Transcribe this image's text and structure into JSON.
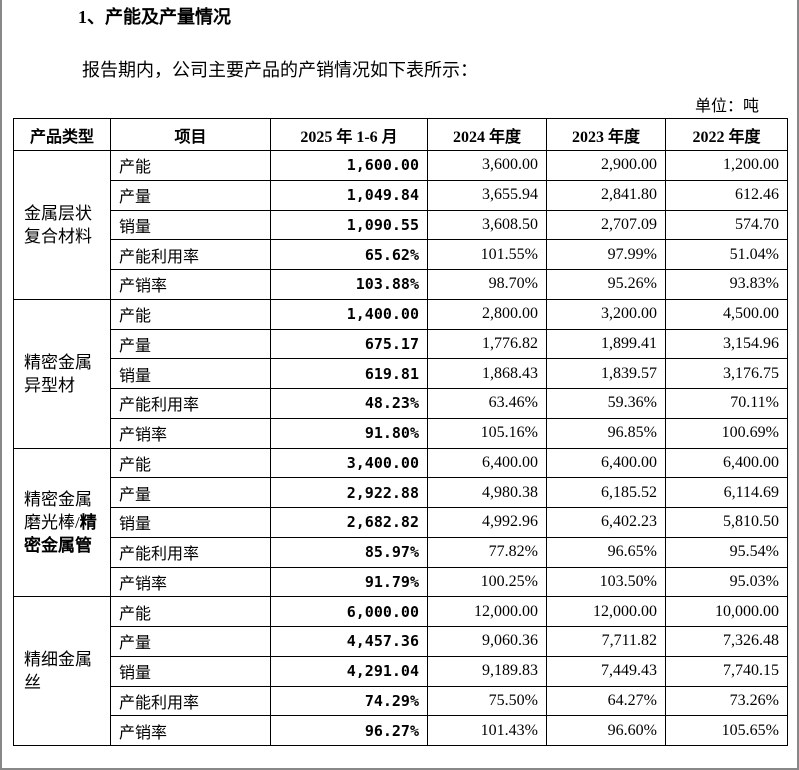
{
  "heading": "1、产能及产量情况",
  "intro": "报告期内，公司主要产品的产销情况如下表所示：",
  "unit": "单位：吨",
  "table": {
    "header": [
      "产品类型",
      "项目",
      "2025 年 1-6 月",
      "2024 年度",
      "2023 年度",
      "2022 年度"
    ],
    "groups": [
      {
        "name": "金属层状复合材料",
        "rows": [
          [
            "产能",
            "1,600.00",
            "3,600.00",
            "2,900.00",
            "1,200.00"
          ],
          [
            "产量",
            "1,049.84",
            "3,655.94",
            "2,841.80",
            "612.46"
          ],
          [
            "销量",
            "1,090.55",
            "3,608.50",
            "2,707.09",
            "574.70"
          ],
          [
            "产能利用率",
            "65.62%",
            "101.55%",
            "97.99%",
            "51.04%"
          ],
          [
            "产销率",
            "103.88%",
            "98.70%",
            "95.26%",
            "93.83%"
          ]
        ]
      },
      {
        "name": "精密金属异型材",
        "rows": [
          [
            "产能",
            "1,400.00",
            "2,800.00",
            "3,200.00",
            "4,500.00"
          ],
          [
            "产量",
            "675.17",
            "1,776.82",
            "1,899.41",
            "3,154.96"
          ],
          [
            "销量",
            "619.81",
            "1,868.43",
            "1,839.57",
            "3,176.75"
          ],
          [
            "产能利用率",
            "48.23%",
            "63.46%",
            "59.36%",
            "70.11%"
          ],
          [
            "产销率",
            "91.80%",
            "105.16%",
            "96.85%",
            "100.69%"
          ]
        ]
      },
      {
        "name": "精密金属磨光棒/",
        "name_bold": "精密金属管",
        "rows": [
          [
            "产能",
            "3,400.00",
            "6,400.00",
            "6,400.00",
            "6,400.00"
          ],
          [
            "产量",
            "2,922.88",
            "4,980.38",
            "6,185.52",
            "6,114.69"
          ],
          [
            "销量",
            "2,682.82",
            "4,992.96",
            "6,402.23",
            "5,810.50"
          ],
          [
            "产能利用率",
            "85.97%",
            "77.82%",
            "96.65%",
            "95.54%"
          ],
          [
            "产销率",
            "91.79%",
            "100.25%",
            "103.50%",
            "95.03%"
          ]
        ]
      },
      {
        "name": "精细金属丝",
        "rows": [
          [
            "产能",
            "6,000.00",
            "12,000.00",
            "12,000.00",
            "10,000.00"
          ],
          [
            "产量",
            "4,457.36",
            "9,060.36",
            "7,711.82",
            "7,326.48"
          ],
          [
            "销量",
            "4,291.04",
            "9,189.83",
            "7,449.43",
            "7,740.15"
          ],
          [
            "产能利用率",
            "74.29%",
            "75.50%",
            "64.27%",
            "73.26%"
          ],
          [
            "产销率",
            "96.27%",
            "101.43%",
            "96.60%",
            "105.65%"
          ]
        ]
      }
    ]
  }
}
